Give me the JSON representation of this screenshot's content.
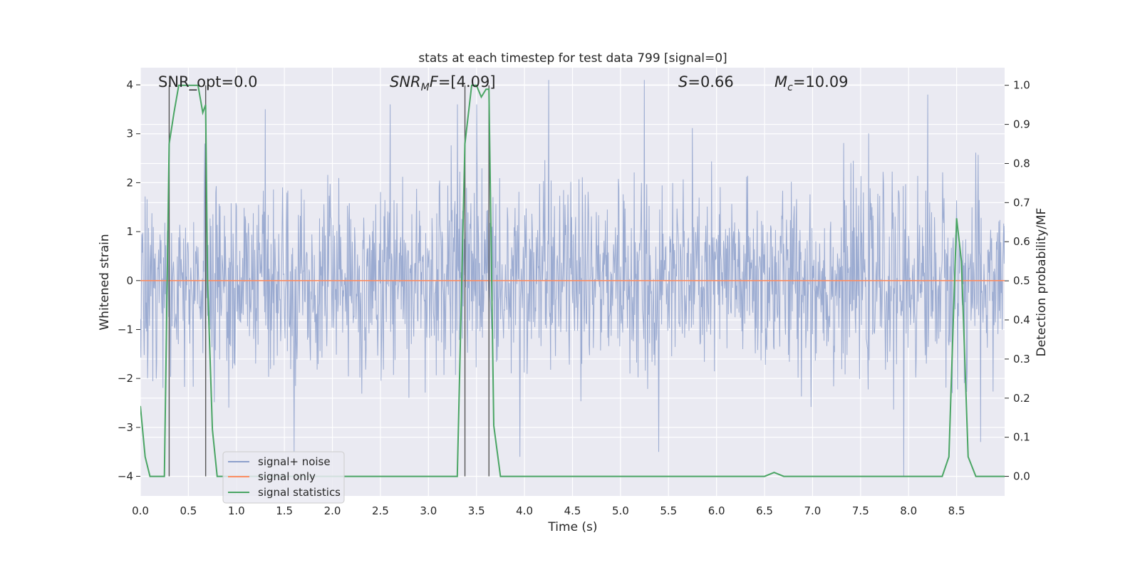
{
  "chart_data": {
    "type": "line",
    "title": "stats at each timestep for test data 799 [signal=0]",
    "xlabel": "Time (s)",
    "ylabel_left": "Whitened strain",
    "ylabel_right": "Detection probability/MF",
    "xlim": [
      0.0,
      9.0
    ],
    "ylim_left": [
      -4.4,
      4.35
    ],
    "ylim_right": [
      -0.05,
      1.045
    ],
    "x_ticks": [
      "0.0",
      "0.5",
      "1.0",
      "1.5",
      "2.0",
      "2.5",
      "3.0",
      "3.5",
      "4.0",
      "4.5",
      "5.0",
      "5.5",
      "6.0",
      "6.5",
      "7.0",
      "7.5",
      "8.0",
      "8.5"
    ],
    "y_left_ticks": [
      "−4",
      "−3",
      "−2",
      "−1",
      "0",
      "1",
      "2",
      "3",
      "4"
    ],
    "y_right_ticks": [
      "0.0",
      "0.1",
      "0.2",
      "0.3",
      "0.4",
      "0.5",
      "0.6",
      "0.7",
      "0.8",
      "0.9",
      "1.0"
    ],
    "grid": true,
    "annotations": {
      "snr_opt": "SNR_opt=0.0",
      "snr_mf_sym": "SNR",
      "snr_mf_sub": "M",
      "snr_mf_rest": "F=[4.09]",
      "s_sym": "S",
      "s_rest": "=0.66",
      "mc_sym": "M",
      "mc_sub": "c",
      "mc_rest": "=10.09"
    },
    "legend": {
      "placement": "lower-left",
      "entries": [
        "signal+ noise",
        "signal only",
        "signal statistics"
      ]
    },
    "vertical_markers": [
      0.3,
      0.68,
      3.38,
      3.63
    ],
    "series": [
      {
        "name": "signal+ noise",
        "axis": "left",
        "color": "#8da0cb",
        "kind": "noise",
        "sigma": 0.82,
        "note_peaks": [
          [
            0.67,
            2.8
          ],
          [
            1.3,
            3.5
          ],
          [
            2.6,
            3.6
          ],
          [
            3.3,
            3.6
          ],
          [
            3.5,
            3.6
          ],
          [
            4.25,
            4.1
          ],
          [
            5.25,
            4.1
          ],
          [
            8.2,
            3.8
          ],
          [
            1.6,
            -3.5
          ],
          [
            3.95,
            -3.6
          ],
          [
            5.4,
            -3.5
          ],
          [
            7.95,
            -4.0
          ],
          [
            8.75,
            -3.3
          ]
        ]
      },
      {
        "name": "signal only",
        "axis": "left",
        "color": "#fc8d62",
        "x": [
          0.0,
          9.0
        ],
        "y": [
          0.0,
          0.0
        ]
      },
      {
        "name": "signal statistics",
        "axis": "right",
        "color": "#4aa564",
        "x": [
          0.0,
          0.05,
          0.1,
          0.25,
          0.3,
          0.35,
          0.4,
          0.5,
          0.6,
          0.65,
          0.68,
          0.7,
          0.75,
          0.8,
          0.85,
          1.0,
          2.0,
          3.0,
          3.3,
          3.38,
          3.45,
          3.5,
          3.55,
          3.6,
          3.63,
          3.68,
          3.75,
          4.0,
          5.0,
          6.0,
          6.5,
          6.6,
          6.7,
          7.0,
          7.5,
          8.0,
          8.35,
          8.42,
          8.5,
          8.55,
          8.62,
          8.7,
          9.0
        ],
        "y": [
          0.18,
          0.05,
          0.0,
          0.0,
          0.85,
          0.93,
          1.0,
          1.0,
          1.0,
          0.93,
          0.95,
          0.5,
          0.12,
          0.0,
          0.0,
          0.0,
          0.0,
          0.0,
          0.0,
          0.85,
          1.0,
          1.0,
          0.97,
          0.99,
          0.99,
          0.13,
          0.0,
          0.0,
          0.0,
          0.0,
          0.0,
          0.01,
          0.0,
          0.0,
          0.0,
          0.0,
          0.0,
          0.05,
          0.66,
          0.55,
          0.05,
          0.0,
          0.0
        ]
      }
    ]
  }
}
